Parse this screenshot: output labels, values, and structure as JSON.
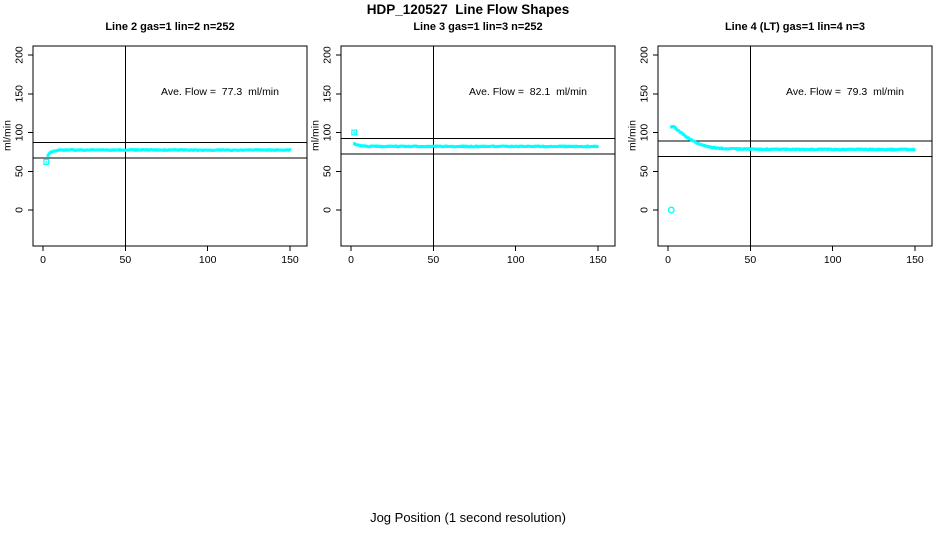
{
  "figure": {
    "title": "HDP_120527  Line Flow Shapes",
    "xlabel": "Jog Position (1 second resolution)",
    "background": "#ffffff",
    "axis_color": "#000000",
    "point_color": "#00ffff"
  },
  "chart_data": [
    {
      "type": "scatter",
      "title": "Line 2 gas=1 lin=2 n=252",
      "n": 252,
      "annotation": "Ave. Flow =  77.3  ml/min",
      "ave_flow_ml_min": 77.3,
      "ylabel": "ml/min",
      "x_ticks": [
        0,
        50,
        100,
        150
      ],
      "y_ticks": [
        0,
        50,
        100,
        150,
        200
      ],
      "grid": false,
      "vline_x": 50,
      "hlines_y": [
        67.3,
        87.3
      ],
      "series": {
        "name": "flow",
        "color": "#00ffff",
        "marker": "square",
        "jitter": 1.2,
        "breakpoints": [
          [
            3,
            70
          ],
          [
            4,
            73.5
          ],
          [
            5,
            75
          ],
          [
            7,
            76.5
          ],
          [
            10,
            77.3
          ],
          [
            20,
            77.5
          ],
          [
            150,
            77.3
          ]
        ]
      },
      "outliers": [
        {
          "x": 2,
          "y": 62,
          "marker": "square-dot"
        }
      ]
    },
    {
      "type": "scatter",
      "title": "Line 3 gas=1 lin=3 n=252",
      "n": 252,
      "annotation": "Ave. Flow =  82.1  ml/min",
      "ave_flow_ml_min": 82.1,
      "ylabel": "ml/min",
      "x_ticks": [
        0,
        50,
        100,
        150
      ],
      "y_ticks": [
        0,
        50,
        100,
        150,
        200
      ],
      "grid": false,
      "vline_x": 50,
      "hlines_y": [
        72.1,
        92.1
      ],
      "series": {
        "name": "flow",
        "color": "#00ffff",
        "marker": "square",
        "jitter": 1.2,
        "breakpoints": [
          [
            2,
            86
          ],
          [
            3,
            84.5
          ],
          [
            5,
            83
          ],
          [
            8,
            82.3
          ],
          [
            12,
            82.1
          ],
          [
            150,
            82
          ]
        ]
      },
      "outliers": [
        {
          "x": 2,
          "y": 100,
          "marker": "square-dot"
        }
      ]
    },
    {
      "type": "scatter",
      "title": "Line 4 (LT) gas=1 lin=4 n=3",
      "n": 3,
      "annotation": "Ave. Flow =  79.3  ml/min",
      "ave_flow_ml_min": 79.3,
      "ylabel": "ml/min",
      "x_ticks": [
        0,
        50,
        100,
        150
      ],
      "y_ticks": [
        0,
        50,
        100,
        150,
        200
      ],
      "grid": false,
      "vline_x": 50,
      "hlines_y": [
        69.3,
        89.3
      ],
      "series": {
        "name": "flow",
        "color": "#00ffff",
        "marker": "square",
        "jitter": 1.4,
        "breakpoints": [
          [
            2,
            107
          ],
          [
            3,
            107.5
          ],
          [
            4,
            106.5
          ],
          [
            5,
            105
          ],
          [
            7,
            101.5
          ],
          [
            9,
            98
          ],
          [
            11,
            95
          ],
          [
            13,
            92
          ],
          [
            15,
            89.5
          ],
          [
            17,
            87
          ],
          [
            19,
            85
          ],
          [
            22,
            83
          ],
          [
            25,
            81.5
          ],
          [
            28,
            80.5
          ],
          [
            32,
            79.5
          ],
          [
            38,
            79
          ],
          [
            45,
            78.6
          ],
          [
            55,
            78.3
          ],
          [
            70,
            78.2
          ],
          [
            90,
            78.4
          ],
          [
            110,
            78.2
          ],
          [
            130,
            78
          ],
          [
            150,
            78
          ]
        ]
      },
      "outliers": [
        {
          "x": 2,
          "y": 0,
          "marker": "circle"
        }
      ]
    }
  ]
}
